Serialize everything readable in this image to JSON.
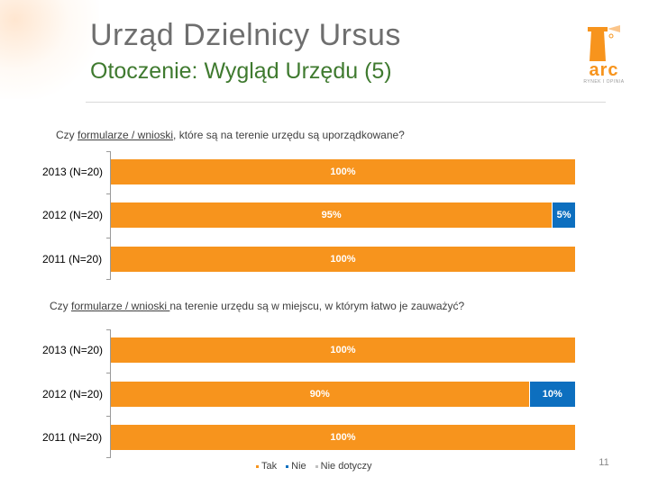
{
  "header": {
    "title": "Urząd Dzielnicy Ursus",
    "subtitle": "Otoczenie: Wygląd Urzędu (5)",
    "logo_text": "arc",
    "logo_sub": "RYNEK I OPINIA"
  },
  "page_number": "11",
  "colors": {
    "tak": "#f7941d",
    "nie": "#0d6fbf",
    "nie_dotyczy": "#c0c0c0",
    "title": "#6e6e6e",
    "subtitle": "#3f7a2f"
  },
  "legend": [
    "Tak",
    "Nie",
    "Nie dotyczy"
  ],
  "chart_data": [
    {
      "type": "bar",
      "orientation": "horizontal",
      "stacked": true,
      "title_parts": [
        "Czy ",
        "formularze / wnioski",
        ", które są na terenie urzędu są uporządkowane?"
      ],
      "categories": [
        "2013 (N=20)",
        "2012 (N=20)",
        "2011 (N=20)"
      ],
      "series": [
        {
          "name": "Tak",
          "values": [
            100,
            95,
            100
          ],
          "labels": [
            "100%",
            "95%",
            "100%"
          ]
        },
        {
          "name": "Nie",
          "values": [
            0,
            5,
            0
          ],
          "labels": [
            "",
            "5%",
            ""
          ]
        },
        {
          "name": "Nie dotyczy",
          "values": [
            0,
            0,
            0
          ],
          "labels": [
            "",
            "",
            ""
          ]
        }
      ],
      "xlim": [
        0,
        100
      ],
      "unit": "%",
      "legend_position": "bottom"
    },
    {
      "type": "bar",
      "orientation": "horizontal",
      "stacked": true,
      "title_parts": [
        "Czy ",
        "formularze / wnioski ",
        "na terenie urzędu są w miejscu, w którym łatwo je zauważyć?"
      ],
      "categories": [
        "2013 (N=20)",
        "2012 (N=20)",
        "2011 (N=20)"
      ],
      "series": [
        {
          "name": "Tak",
          "values": [
            100,
            90,
            100
          ],
          "labels": [
            "100%",
            "90%",
            "100%"
          ]
        },
        {
          "name": "Nie",
          "values": [
            0,
            10,
            0
          ],
          "labels": [
            "",
            "10%",
            ""
          ]
        },
        {
          "name": "Nie dotyczy",
          "values": [
            0,
            0,
            0
          ],
          "labels": [
            "",
            "",
            ""
          ]
        }
      ],
      "xlim": [
        0,
        100
      ],
      "unit": "%",
      "legend_position": "bottom"
    }
  ]
}
